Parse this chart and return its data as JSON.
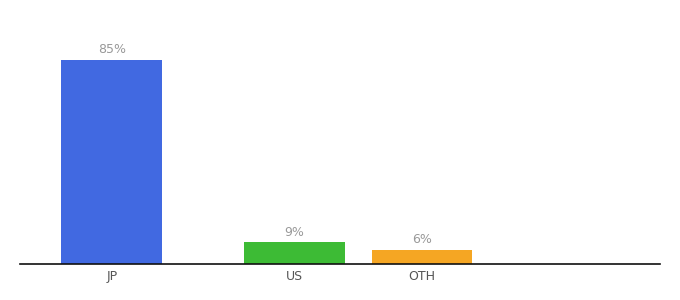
{
  "categories": [
    "JP",
    "US",
    "OTH"
  ],
  "values": [
    85,
    9,
    6
  ],
  "bar_colors": [
    "#4169e1",
    "#3dbb35",
    "#f5a623"
  ],
  "value_labels": [
    "85%",
    "9%",
    "6%"
  ],
  "ylim": [
    0,
    100
  ],
  "bar_width": 0.55,
  "background_color": "#ffffff",
  "label_color": "#999999",
  "value_fontsize": 9,
  "tick_fontsize": 9,
  "x_positions": [
    0.5,
    1.5,
    2.2
  ],
  "xlim": [
    0.0,
    3.5
  ]
}
